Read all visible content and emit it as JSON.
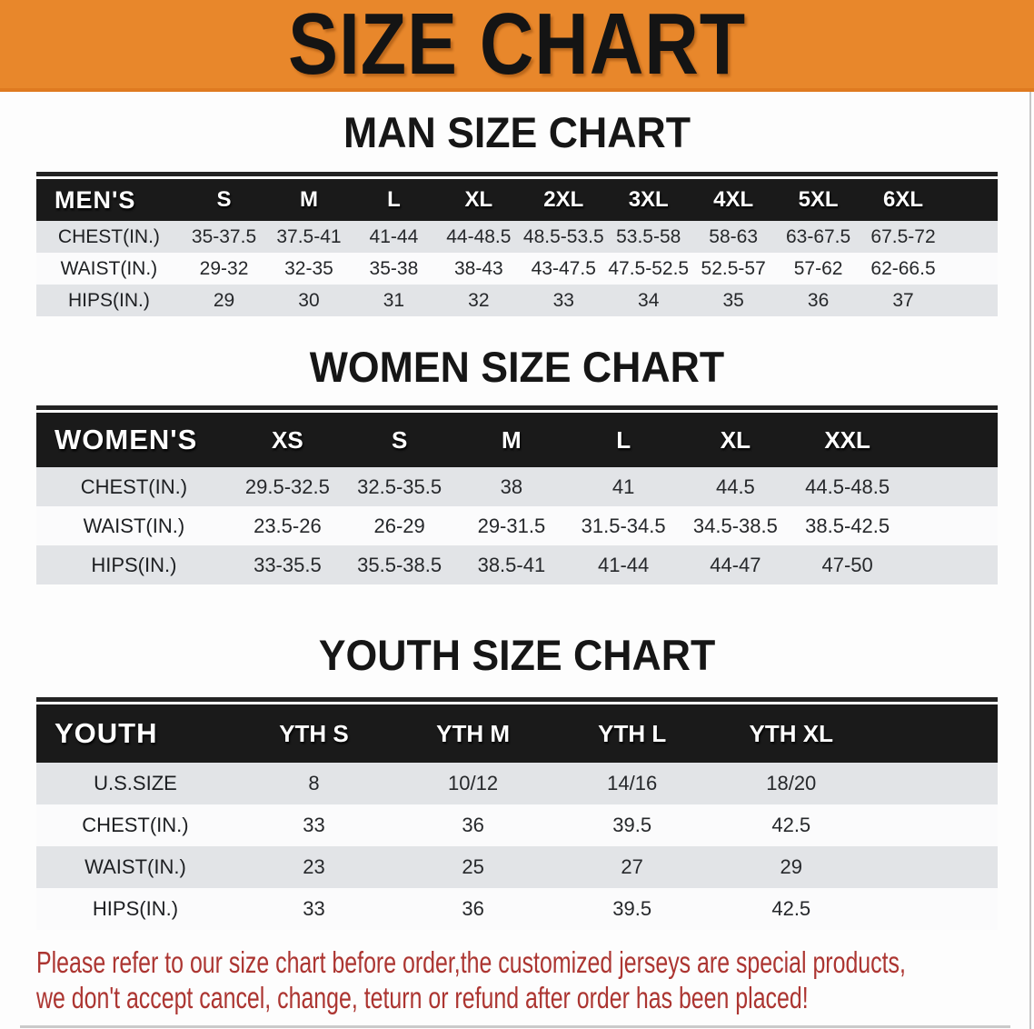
{
  "banner": {
    "title": "SIZE CHART"
  },
  "sections": [
    {
      "heading": "MAN SIZE CHART",
      "table": {
        "group_label": "MEN'S",
        "columns": [
          "S",
          "M",
          "L",
          "XL",
          "2XL",
          "3XL",
          "4XL",
          "5XL",
          "6XL"
        ],
        "rows": [
          {
            "label": "CHEST(IN.)",
            "values": [
              "35-37.5",
              "37.5-41",
              "41-44",
              "44-48.5",
              "48.5-53.5",
              "53.5-58",
              "58-63",
              "63-67.5",
              "67.5-72"
            ]
          },
          {
            "label": "WAIST(IN.)",
            "values": [
              "29-32",
              "32-35",
              "35-38",
              "38-43",
              "43-47.5",
              "47.5-52.5",
              "52.5-57",
              "57-62",
              "62-66.5"
            ]
          },
          {
            "label": "HIPS(IN.)",
            "values": [
              "29",
              "30",
              "31",
              "32",
              "33",
              "34",
              "35",
              "36",
              "37"
            ]
          }
        ]
      }
    },
    {
      "heading": "WOMEN SIZE CHART",
      "table": {
        "group_label": "WOMEN'S",
        "columns": [
          "XS",
          "S",
          "M",
          "L",
          "XL",
          "XXL"
        ],
        "rows": [
          {
            "label": "CHEST(IN.)",
            "values": [
              "29.5-32.5",
              "32.5-35.5",
              "38",
              "41",
              "44.5",
              "44.5-48.5"
            ]
          },
          {
            "label": "WAIST(IN.)",
            "values": [
              "23.5-26",
              "26-29",
              "29-31.5",
              "31.5-34.5",
              "34.5-38.5",
              "38.5-42.5"
            ]
          },
          {
            "label": "HIPS(IN.)",
            "values": [
              "33-35.5",
              "35.5-38.5",
              "38.5-41",
              "41-44",
              "44-47",
              "47-50"
            ]
          }
        ]
      }
    },
    {
      "heading": "YOUTH SIZE CHART",
      "table": {
        "group_label": "YOUTH",
        "columns": [
          "YTH S",
          "YTH M",
          "YTH L",
          "YTH XL"
        ],
        "rows": [
          {
            "label": "U.S.SIZE",
            "values": [
              "8",
              "10/12",
              "14/16",
              "18/20"
            ]
          },
          {
            "label": "CHEST(IN.)",
            "values": [
              "33",
              "36",
              "39.5",
              "42.5"
            ]
          },
          {
            "label": "WAIST(IN.)",
            "values": [
              "23",
              "25",
              "27",
              "29"
            ]
          },
          {
            "label": "HIPS(IN.)",
            "values": [
              "33",
              "36",
              "39.5",
              "42.5"
            ]
          }
        ]
      }
    }
  ],
  "footnote": {
    "line1": "Please refer to our size chart before order,the customized jerseys are special products,",
    "line2": "we don't accept cancel, change, teturn or refund after order has been placed!"
  },
  "colors": {
    "accent_orange": "#E8872B",
    "header_bar": "#1A1A1A",
    "row_shaded": "#E2E4E7",
    "footnote_red": "#AC3531"
  }
}
